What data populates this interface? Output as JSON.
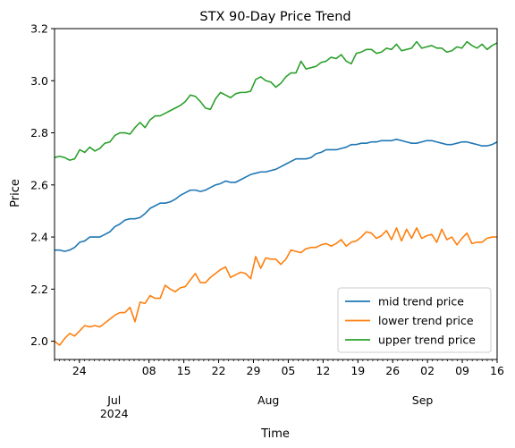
{
  "chart_data": {
    "type": "line",
    "title": "STX 90-Day Price Trend",
    "xlabel": "Time",
    "ylabel": "Price",
    "x_start": "2024-06-19",
    "x_end": "2024-09-16",
    "xlim": [
      "2024-06-19",
      "2024-09-16"
    ],
    "ylim": [
      1.93,
      3.2
    ],
    "yticks": [
      2.0,
      2.2,
      2.4,
      2.6,
      2.8,
      3.0,
      3.2
    ],
    "ytick_labels": [
      "2.0",
      "2.2",
      "2.4",
      "2.6",
      "2.8",
      "3.0",
      "3.2"
    ],
    "x_major_ticks": [
      {
        "date": "2024-06-24",
        "label": "24"
      },
      {
        "date": "2024-07-08",
        "label": "08"
      },
      {
        "date": "2024-07-15",
        "label": "15"
      },
      {
        "date": "2024-07-22",
        "label": "22"
      },
      {
        "date": "2024-07-29",
        "label": "29"
      },
      {
        "date": "2024-08-05",
        "label": "05"
      },
      {
        "date": "2024-08-12",
        "label": "12"
      },
      {
        "date": "2024-08-19",
        "label": "19"
      },
      {
        "date": "2024-08-26",
        "label": "26"
      },
      {
        "date": "2024-09-02",
        "label": "02"
      },
      {
        "date": "2024-09-09",
        "label": "09"
      },
      {
        "date": "2024-09-16",
        "label": "16"
      }
    ],
    "x_month_labels": [
      {
        "date": "2024-07-01",
        "label": "Jul\n2024"
      },
      {
        "date": "2024-08-01",
        "label": "Aug"
      },
      {
        "date": "2024-09-01",
        "label": "Sep"
      }
    ],
    "grid": false,
    "legend_position": "lower-right",
    "series": [
      {
        "name": "mid trend price",
        "color": "#1f77b4",
        "values": [
          2.35,
          2.35,
          2.345,
          2.35,
          2.36,
          2.38,
          2.385,
          2.4,
          2.4,
          2.4,
          2.41,
          2.42,
          2.44,
          2.45,
          2.465,
          2.47,
          2.47,
          2.475,
          2.49,
          2.51,
          2.52,
          2.53,
          2.53,
          2.535,
          2.545,
          2.56,
          2.57,
          2.58,
          2.58,
          2.575,
          2.58,
          2.59,
          2.6,
          2.605,
          2.615,
          2.61,
          2.61,
          2.62,
          2.63,
          2.64,
          2.645,
          2.65,
          2.65,
          2.655,
          2.66,
          2.67,
          2.68,
          2.69,
          2.7,
          2.7,
          2.7,
          2.705,
          2.72,
          2.725,
          2.735,
          2.735,
          2.735,
          2.74,
          2.745,
          2.755,
          2.755,
          2.76,
          2.76,
          2.765,
          2.765,
          2.77,
          2.77,
          2.77,
          2.775,
          2.77,
          2.765,
          2.76,
          2.76,
          2.765,
          2.77,
          2.77,
          2.765,
          2.76,
          2.755,
          2.755,
          2.76,
          2.765,
          2.765,
          2.76,
          2.755,
          2.75,
          2.75,
          2.755,
          2.765
        ]
      },
      {
        "name": "lower trend price",
        "color": "#ff7f0e",
        "values": [
          2.0,
          1.985,
          2.01,
          2.03,
          2.02,
          2.04,
          2.06,
          2.055,
          2.06,
          2.055,
          2.07,
          2.085,
          2.1,
          2.11,
          2.11,
          2.13,
          2.075,
          2.15,
          2.145,
          2.175,
          2.165,
          2.165,
          2.215,
          2.2,
          2.19,
          2.205,
          2.21,
          2.235,
          2.26,
          2.225,
          2.225,
          2.245,
          2.26,
          2.275,
          2.285,
          2.245,
          2.255,
          2.265,
          2.26,
          2.24,
          2.325,
          2.28,
          2.32,
          2.315,
          2.315,
          2.295,
          2.315,
          2.35,
          2.345,
          2.34,
          2.355,
          2.36,
          2.36,
          2.37,
          2.375,
          2.365,
          2.375,
          2.39,
          2.365,
          2.38,
          2.385,
          2.4,
          2.42,
          2.415,
          2.395,
          2.405,
          2.425,
          2.39,
          2.435,
          2.385,
          2.43,
          2.395,
          2.435,
          2.395,
          2.405,
          2.41,
          2.38,
          2.43,
          2.39,
          2.4,
          2.37,
          2.395,
          2.415,
          2.375,
          2.38,
          2.38,
          2.395,
          2.4,
          2.4
        ]
      },
      {
        "name": "upper trend price",
        "color": "#2ca02c",
        "values": [
          2.705,
          2.71,
          2.705,
          2.695,
          2.7,
          2.735,
          2.725,
          2.745,
          2.73,
          2.74,
          2.76,
          2.765,
          2.79,
          2.8,
          2.8,
          2.795,
          2.82,
          2.84,
          2.82,
          2.85,
          2.865,
          2.865,
          2.875,
          2.885,
          2.895,
          2.905,
          2.92,
          2.945,
          2.94,
          2.92,
          2.895,
          2.89,
          2.93,
          2.955,
          2.945,
          2.935,
          2.95,
          2.955,
          2.955,
          2.96,
          3.005,
          3.015,
          3.0,
          2.995,
          2.975,
          2.99,
          3.015,
          3.03,
          3.03,
          3.075,
          3.045,
          3.05,
          3.055,
          3.07,
          3.075,
          3.09,
          3.085,
          3.1,
          3.075,
          3.065,
          3.105,
          3.11,
          3.12,
          3.12,
          3.105,
          3.11,
          3.125,
          3.12,
          3.14,
          3.115,
          3.12,
          3.125,
          3.15,
          3.125,
          3.13,
          3.135,
          3.125,
          3.125,
          3.11,
          3.115,
          3.13,
          3.125,
          3.15,
          3.135,
          3.125,
          3.14,
          3.12,
          3.135,
          3.145
        ]
      }
    ]
  }
}
